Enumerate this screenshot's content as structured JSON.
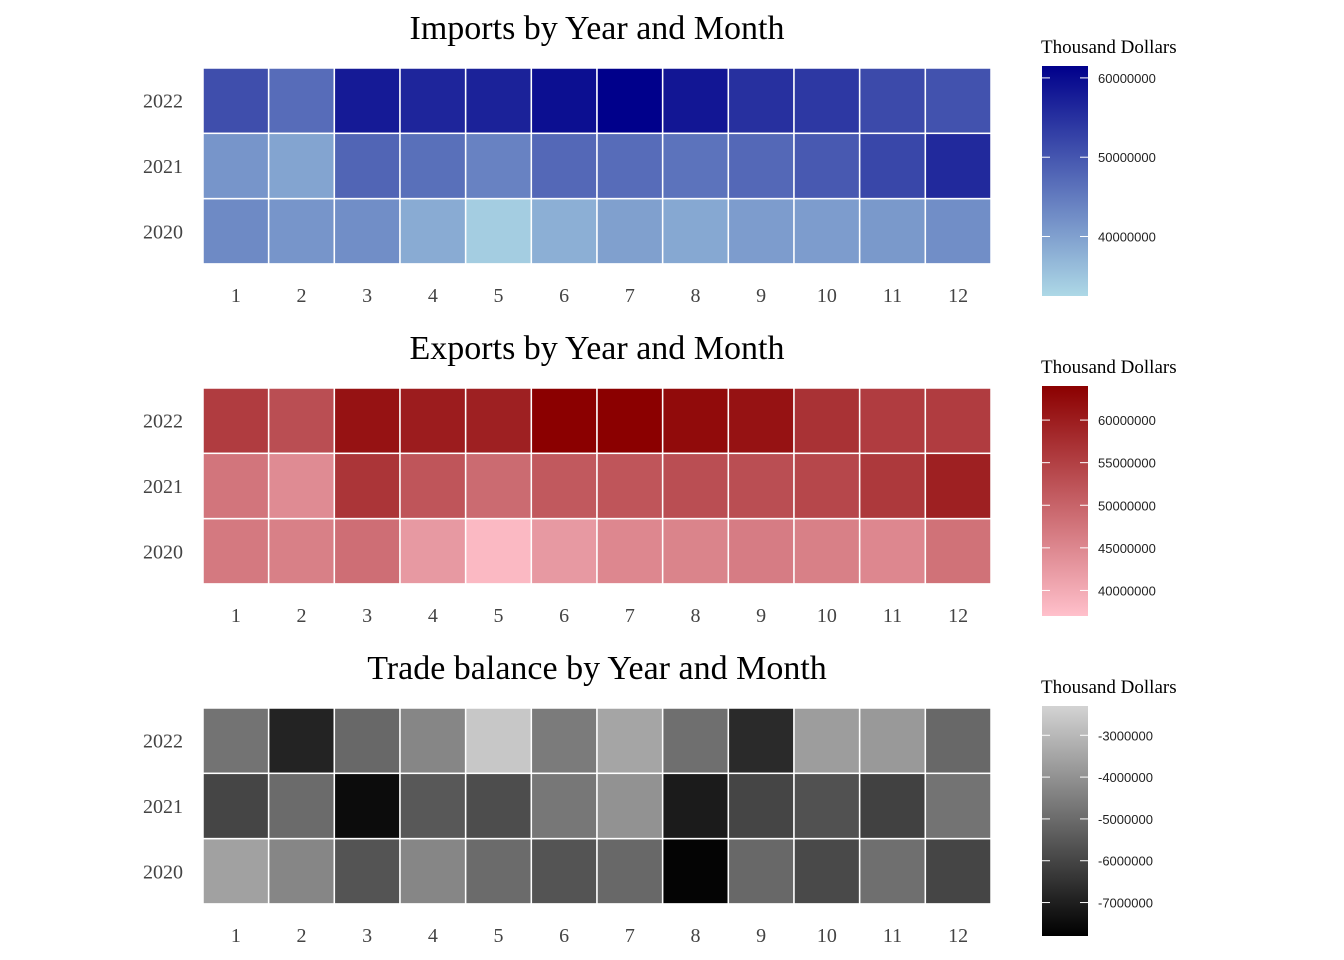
{
  "chart_data": [
    {
      "type": "heatmap",
      "title": "Imports by Year and Month",
      "x": [
        1,
        2,
        3,
        4,
        5,
        6,
        7,
        8,
        9,
        10,
        11,
        12
      ],
      "y": [
        2020,
        2021,
        2022
      ],
      "values": [
        [
          43000000,
          41500000,
          42500000,
          38500000,
          34000000,
          38000000,
          40000000,
          39000000,
          40500000,
          40500000,
          41000000,
          42500000
        ],
        [
          41500000,
          39500000,
          48000000,
          46500000,
          44000000,
          47500000,
          47000000,
          46000000,
          47500000,
          49500000,
          52000000,
          56000000
        ],
        [
          51000000,
          47000000,
          58000000,
          56500000,
          57000000,
          59500000,
          61500000,
          58500000,
          55000000,
          54000000,
          51500000,
          50500000
        ]
      ],
      "legend": {
        "title": "Thousand Dollars",
        "ticks": [
          40000000,
          50000000,
          60000000
        ],
        "range": [
          32500000,
          61500000
        ],
        "colors": [
          "#add8e6",
          "#00008b"
        ]
      }
    },
    {
      "type": "heatmap",
      "title": "Exports by Year and Month",
      "x": [
        1,
        2,
        3,
        4,
        5,
        6,
        7,
        8,
        9,
        10,
        11,
        12
      ],
      "y": [
        2020,
        2021,
        2022
      ],
      "values": [
        [
          47000000,
          46000000,
          48500000,
          42500000,
          38000000,
          42500000,
          45000000,
          45500000,
          46500000,
          46000000,
          45000000,
          48000000
        ],
        [
          47500000,
          44500000,
          56500000,
          52000000,
          49000000,
          51500000,
          52000000,
          53000000,
          53000000,
          54000000,
          56000000,
          59500000
        ],
        [
          55500000,
          53000000,
          61500000,
          60000000,
          59500000,
          64000000,
          64000000,
          62500000,
          61500000,
          57000000,
          55500000,
          55500000
        ]
      ],
      "legend": {
        "title": "Thousand Dollars",
        "ticks": [
          40000000,
          45000000,
          50000000,
          55000000,
          60000000
        ],
        "range": [
          37000000,
          64000000
        ],
        "colors": [
          "#ffc0cb",
          "#8b0000"
        ]
      }
    },
    {
      "type": "heatmap",
      "title": "Trade balance by Year and Month",
      "x": [
        1,
        2,
        3,
        4,
        5,
        6,
        7,
        8,
        9,
        10,
        11,
        12
      ],
      "y": [
        2020,
        2021,
        2022
      ],
      "values": [
        [
          -3600000,
          -4300000,
          -5600000,
          -4300000,
          -5000000,
          -5600000,
          -5100000,
          -7700000,
          -5100000,
          -5900000,
          -4900000,
          -6000000
        ],
        [
          -6000000,
          -5000000,
          -7500000,
          -5500000,
          -5800000,
          -4700000,
          -4000000,
          -7100000,
          -6000000,
          -5700000,
          -6100000,
          -4800000
        ],
        [
          -4800000,
          -6900000,
          -5100000,
          -4300000,
          -2600000,
          -4600000,
          -3500000,
          -4900000,
          -6700000,
          -3700000,
          -3800000,
          -5100000
        ]
      ],
      "legend": {
        "title": "Thousand Dollars",
        "ticks": [
          -7000000,
          -6000000,
          -5000000,
          -4000000,
          -3000000
        ],
        "range": [
          -7800000,
          -2300000
        ],
        "colors": [
          "#000000",
          "#d3d3d3"
        ]
      }
    }
  ]
}
